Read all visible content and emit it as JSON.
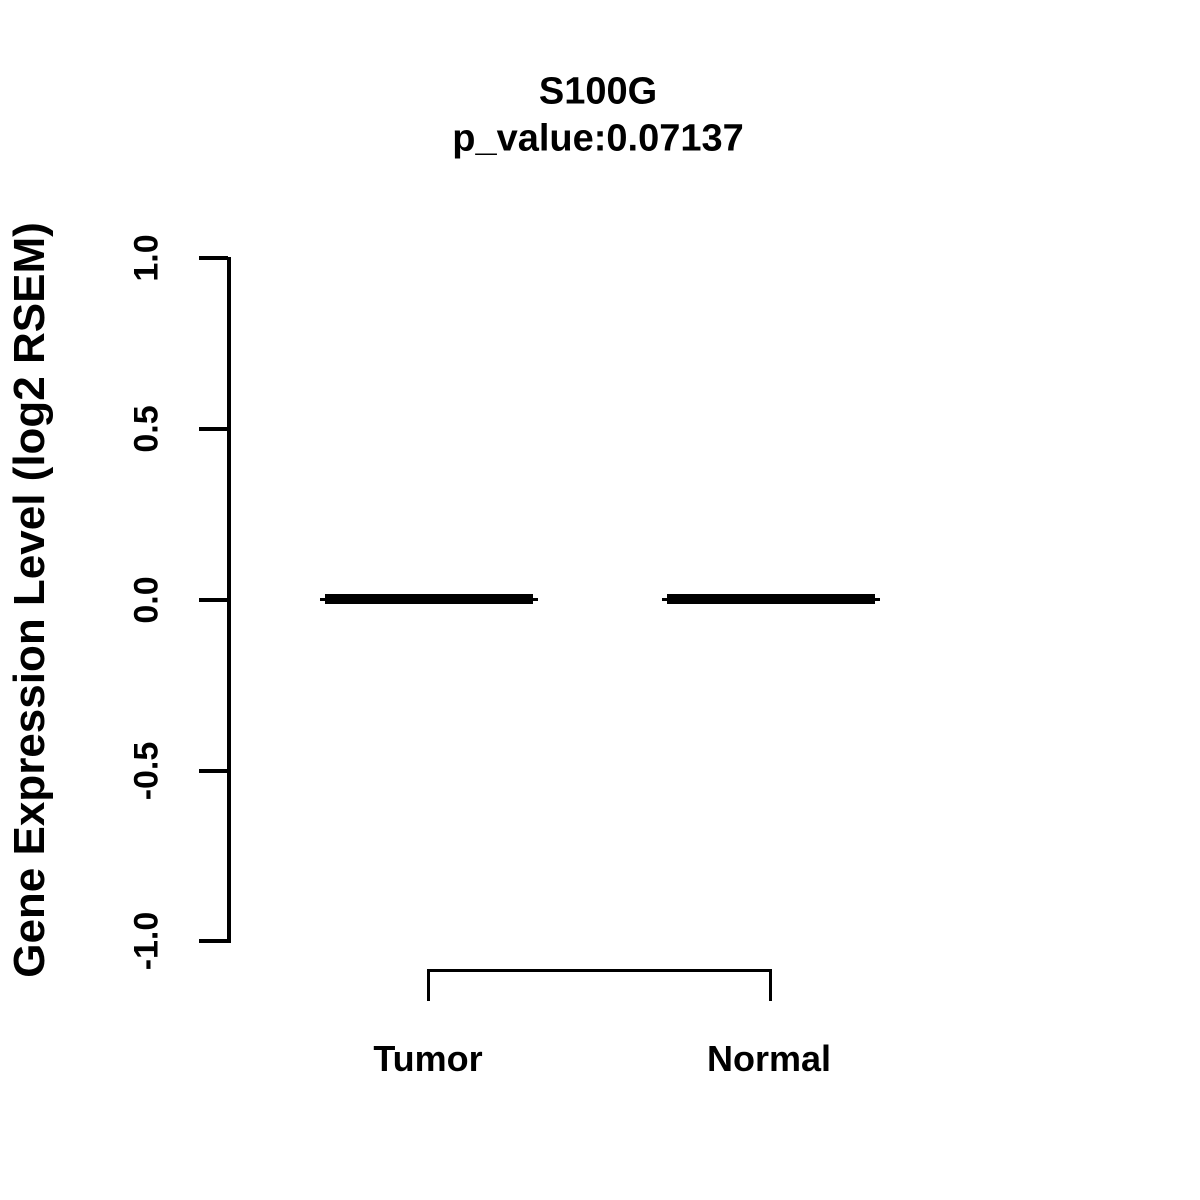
{
  "chart_data": {
    "type": "boxplot",
    "title": "S100G",
    "subtitle": "p_value:0.07137",
    "gene": "S100G",
    "p_value": 0.07137,
    "ylabel": "Gene Expression Level (log2 RSEM)",
    "ylim": [
      -1.0,
      1.0
    ],
    "yticks": [
      "1.0",
      "0.5",
      "0.0",
      "-0.5",
      "-1.0"
    ],
    "grid": false,
    "legend": false,
    "categories": [
      "Tumor",
      "Normal"
    ],
    "series": [
      {
        "name": "Tumor",
        "median": 0.0,
        "q1": 0.0,
        "q3": 0.0,
        "whisker_low": 0.0,
        "whisker_high": 0.0
      },
      {
        "name": "Normal",
        "median": 0.0,
        "q1": 0.0,
        "q3": 0.0,
        "whisker_low": 0.0,
        "whisker_high": 0.0
      }
    ],
    "comparison_bracket": {
      "groups": [
        "Tumor",
        "Normal"
      ],
      "position": "below-axis"
    },
    "colors": {
      "foreground": "#000000",
      "background": "#ffffff"
    }
  }
}
